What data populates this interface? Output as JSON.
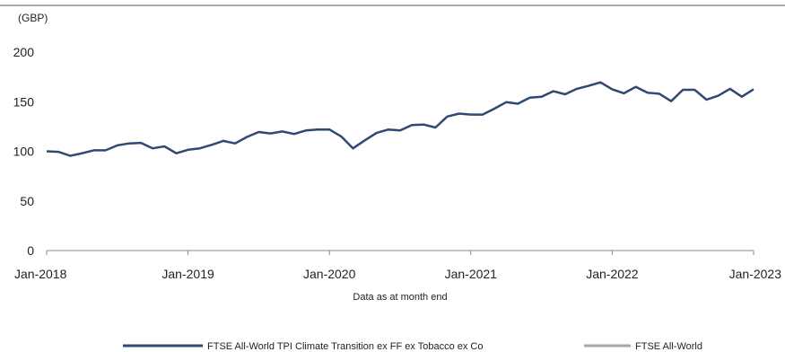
{
  "chart_data": {
    "type": "line",
    "unit_label": "(GBP)",
    "xlabel": "Data as at month end",
    "ylim": [
      0,
      200
    ],
    "y_ticks": [
      "0",
      "50",
      "100",
      "150",
      "200"
    ],
    "x_ticks": [
      "Jan-2018",
      "Jan-2019",
      "Jan-2020",
      "Jan-2021",
      "Jan-2022",
      "Jan-2023"
    ],
    "grid": false,
    "legend_position": "bottom",
    "series": [
      {
        "name": "FTSE All-World TPI Climate Transition ex FF ex Tobacco ex Co",
        "color": "#2e4a72",
        "values": [
          100,
          99.5,
          95.5,
          98,
          101,
          101,
          106,
          108,
          108.5,
          103,
          105,
          98,
          101.5,
          103,
          106.5,
          110.5,
          108,
          114.5,
          119.5,
          118,
          120,
          117.5,
          121,
          122,
          122,
          115,
          103,
          111,
          118.5,
          122,
          121,
          126.5,
          127,
          124,
          135,
          138,
          137,
          137,
          143,
          149.5,
          148,
          154,
          155,
          160.5,
          157.5,
          163,
          166,
          169.5,
          162.5,
          158.5,
          165,
          159,
          158,
          150.5,
          162,
          162,
          152,
          156,
          163,
          155,
          162.5
        ]
      },
      {
        "name": "FTSE All-World",
        "color": "#a6a6a6",
        "values": []
      }
    ]
  }
}
